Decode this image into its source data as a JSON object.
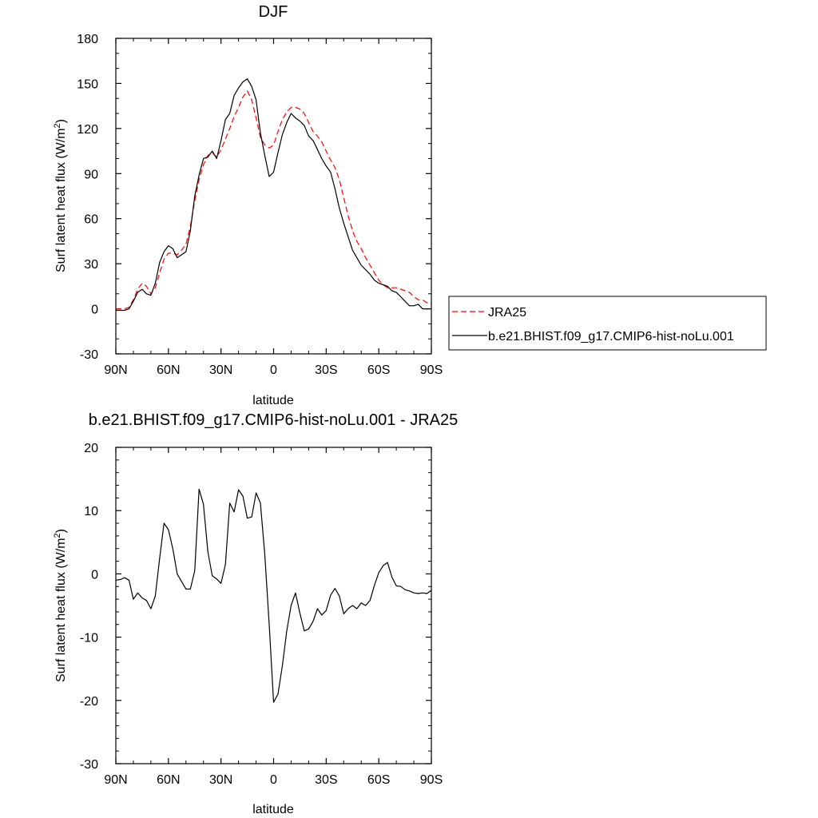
{
  "chart_data": [
    {
      "type": "line",
      "title": "DJF",
      "xlabel": "latitude",
      "ylabel": "Surf latent heat flux (W/m",
      "ylabel_sup": "2",
      "ylabel_close": ")",
      "xlim": [
        90,
        -90
      ],
      "ylim": [
        -30,
        180
      ],
      "xtick_values": [
        90,
        60,
        30,
        0,
        -30,
        -60,
        -90
      ],
      "xtick_labels": [
        "90N",
        "60N",
        "30N",
        "0",
        "30S",
        "60S",
        "90S"
      ],
      "ytick_values": [
        -30,
        0,
        30,
        60,
        90,
        120,
        150,
        180
      ],
      "ytick_labels": [
        "-30",
        "0",
        "30",
        "60",
        "90",
        "120",
        "150",
        "180"
      ],
      "legend_position": "right",
      "grid": false,
      "series": [
        {
          "name": "JRA25",
          "color": "#ff0000",
          "dash": "dashed",
          "x": [
            90,
            87.5,
            85,
            82.5,
            80,
            77.5,
            75,
            72.5,
            70,
            67.5,
            65,
            62.5,
            60,
            57.5,
            55,
            52.5,
            50,
            47.5,
            45,
            42.5,
            40,
            37.5,
            35,
            32.5,
            30,
            27.5,
            25,
            22.5,
            20,
            17.5,
            15,
            12.5,
            10,
            7.5,
            5,
            2.5,
            0,
            -2.5,
            -5,
            -7.5,
            -10,
            -12.5,
            -15,
            -17.5,
            -20,
            -22.5,
            -25,
            -27.5,
            -30,
            -32.5,
            -35,
            -37.5,
            -40,
            -42.5,
            -45,
            -47.5,
            -50,
            -52.5,
            -55,
            -57.5,
            -60,
            -62.5,
            -65,
            -67.5,
            -70,
            -72.5,
            -75,
            -77.5,
            -80,
            -82.5,
            -85,
            -87.5,
            -90
          ],
          "y": [
            0,
            0,
            0,
            1,
            6,
            13,
            17,
            15,
            10,
            14,
            24,
            33,
            37,
            37,
            36,
            39,
            43,
            55,
            72,
            86,
            96,
            102,
            104,
            101,
            106,
            113,
            120,
            128,
            134,
            141,
            145,
            139,
            127,
            114,
            109,
            107,
            109,
            118,
            126,
            131,
            134,
            134,
            133,
            130,
            124,
            118,
            115,
            111,
            105,
            99,
            94,
            86,
            74,
            62,
            52,
            45,
            40,
            34,
            29,
            24,
            19,
            16,
            14,
            14,
            14,
            13,
            12,
            11,
            8,
            6,
            6,
            4,
            3
          ]
        },
        {
          "name": "b.e21.BHIST.f09_g17.CMIP6-hist-noLu.001",
          "color": "#000000",
          "dash": "solid",
          "x": [
            90,
            87.5,
            85,
            82.5,
            80,
            77.5,
            75,
            72.5,
            70,
            67.5,
            65,
            62.5,
            60,
            57.5,
            55,
            52.5,
            50,
            47.5,
            45,
            42.5,
            40,
            37.5,
            35,
            32.5,
            30,
            27.5,
            25,
            22.5,
            20,
            17.5,
            15,
            12.5,
            10,
            7.5,
            5,
            2.5,
            0,
            -2.5,
            -5,
            -7.5,
            -10,
            -12.5,
            -15,
            -17.5,
            -20,
            -22.5,
            -25,
            -27.5,
            -30,
            -32.5,
            -35,
            -37.5,
            -40,
            -42.5,
            -45,
            -47.5,
            -50,
            -52.5,
            -55,
            -57.5,
            -60,
            -62.5,
            -65,
            -67.5,
            -70,
            -72.5,
            -75,
            -77.5,
            -80,
            -82.5,
            -85,
            -87.5,
            -90
          ],
          "y": [
            -1,
            -1,
            -1,
            0,
            5,
            11,
            13,
            10,
            9,
            17,
            31,
            38,
            42,
            40,
            34,
            36,
            38,
            52,
            75,
            89,
            100,
            101,
            105,
            100,
            112,
            126,
            130,
            142,
            147,
            151,
            153,
            148,
            139,
            117,
            102,
            88,
            91,
            104,
            116,
            124,
            130,
            127,
            125,
            122,
            115,
            112,
            106,
            100,
            95,
            91,
            80,
            67,
            57,
            48,
            39,
            34,
            29,
            26,
            23,
            19,
            17,
            16,
            15,
            12,
            11,
            8,
            5,
            2,
            2,
            3,
            0,
            0,
            0
          ]
        }
      ]
    },
    {
      "type": "line",
      "title": "b.e21.BHIST.f09_g17.CMIP6-hist-noLu.001 - JRA25",
      "xlabel": "latitude",
      "ylabel": "Surf latent heat flux (W/m",
      "ylabel_sup": "2",
      "ylabel_close": ")",
      "xlim": [
        90,
        -90
      ],
      "ylim": [
        -30,
        20
      ],
      "xtick_values": [
        90,
        60,
        30,
        0,
        -30,
        -60,
        -90
      ],
      "xtick_labels": [
        "90N",
        "60N",
        "30N",
        "0",
        "30S",
        "60S",
        "90S"
      ],
      "ytick_values": [
        -30,
        -20,
        -10,
        0,
        10,
        20
      ],
      "ytick_labels": [
        "-30",
        "-20",
        "-10",
        "0",
        "10",
        "20"
      ],
      "grid": false,
      "series": [
        {
          "color": "#000000",
          "dash": "solid",
          "x": [
            90,
            87.5,
            85,
            82.5,
            80,
            77.5,
            75,
            72.5,
            70,
            67.5,
            65,
            62.5,
            60,
            57.5,
            55,
            52.5,
            50,
            47.5,
            45,
            42.5,
            40,
            37.5,
            35,
            32.5,
            30,
            27.5,
            25,
            22.5,
            20,
            17.5,
            15,
            12.5,
            10,
            7.5,
            5,
            2.5,
            0,
            -2.5,
            -5,
            -7.5,
            -10,
            -12.5,
            -15,
            -17.5,
            -20,
            -22.5,
            -25,
            -27.5,
            -30,
            -32.5,
            -35,
            -37.5,
            -40,
            -42.5,
            -45,
            -47.5,
            -50,
            -52.5,
            -55,
            -57.5,
            -60,
            -62.5,
            -65,
            -67.5,
            -70,
            -72.5,
            -75,
            -77.5,
            -80,
            -82.5,
            -85,
            -87.5,
            -90
          ],
          "y": [
            -1,
            -0.9,
            -0.6,
            -1,
            -4,
            -3,
            -3.8,
            -4.2,
            -5.5,
            -3.5,
            2.5,
            8,
            7,
            4,
            0,
            -1.2,
            -2.4,
            -2.4,
            0.5,
            13.4,
            11,
            3.5,
            -0.3,
            -0.8,
            -1.5,
            1.5,
            11.2,
            9.8,
            13.3,
            12.3,
            8.8,
            9,
            12.8,
            11.2,
            3,
            -8,
            -20.3,
            -19,
            -14.5,
            -9,
            -5,
            -3,
            -6.2,
            -9,
            -8.7,
            -7.5,
            -5.5,
            -6.5,
            -5.8,
            -3.4,
            -2.3,
            -3.5,
            -6.3,
            -5.5,
            -5,
            -5.5,
            -4.6,
            -5,
            -4.2,
            -1.8,
            0.2,
            1.3,
            1.8,
            -0.5,
            -1.9,
            -2,
            -2.5,
            -2.7,
            -3,
            -3.1,
            -3,
            -3.1,
            -2.6
          ]
        }
      ]
    }
  ]
}
